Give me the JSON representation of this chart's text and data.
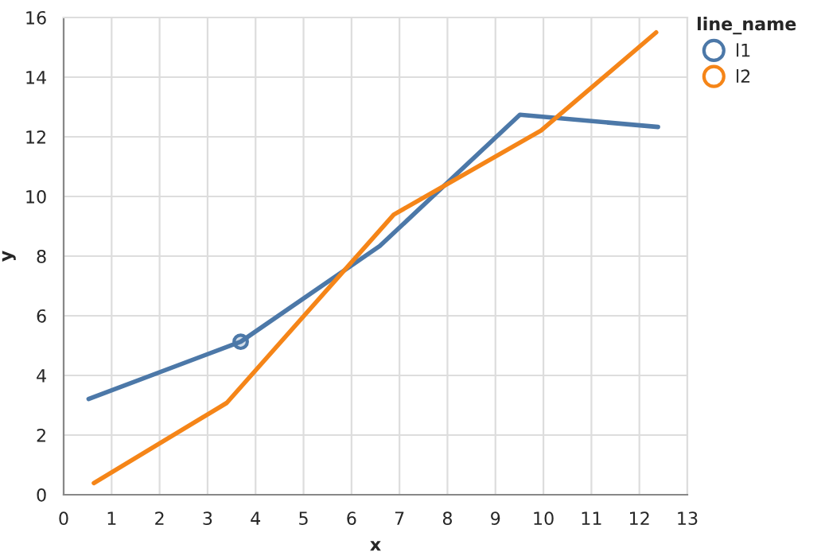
{
  "chart_data": {
    "type": "line",
    "xlabel": "x",
    "ylabel": "y",
    "legend_title": "line_name",
    "xlim": [
      0,
      13
    ],
    "xticks": [
      0,
      1,
      2,
      3,
      4,
      5,
      6,
      7,
      8,
      9,
      10,
      11,
      12,
      13
    ],
    "ylim": [
      0,
      16
    ],
    "yticks": [
      0,
      2,
      4,
      6,
      8,
      10,
      12,
      14,
      16
    ],
    "grid": true,
    "legend": "top right",
    "series": [
      {
        "name": "l1",
        "color": "#4c78a8",
        "x": [
          0.52,
          3.69,
          6.59,
          9.51,
          12.39
        ],
        "values": [
          3.21,
          5.13,
          8.34,
          12.74,
          12.33
        ]
      },
      {
        "name": "l2",
        "color": "#f58518",
        "x": [
          0.63,
          3.4,
          6.88,
          9.95,
          12.35
        ],
        "values": [
          0.39,
          3.08,
          9.39,
          12.21,
          15.5
        ]
      },
      {
        "type": "scatter",
        "marker": "circle",
        "color": "#4c78a8",
        "x": [
          3.69
        ],
        "values": [
          5.13
        ]
      }
    ]
  }
}
